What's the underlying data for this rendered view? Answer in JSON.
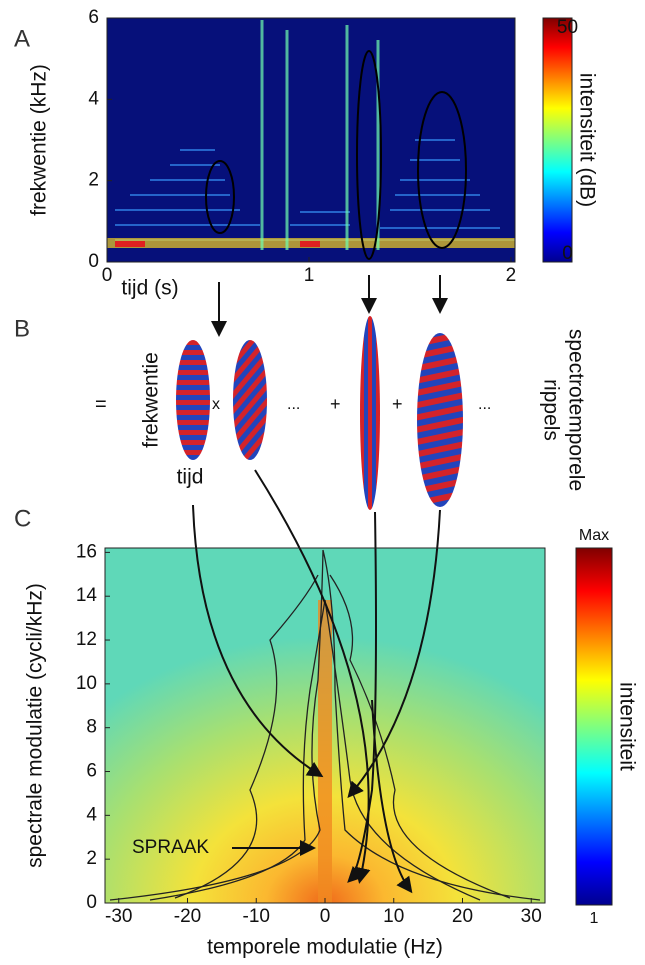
{
  "chart_data": [
    {
      "type": "heatmap",
      "panel_label": "A",
      "xlabel": "tijd (s)",
      "ylabel": "frekwentie (kHz)",
      "xlim": [
        0,
        2.02
      ],
      "xticks": [
        0,
        1,
        2
      ],
      "ylim": [
        0,
        6
      ],
      "yticks": [
        0,
        2,
        4,
        6
      ],
      "colorbar_label": "intensiteit (dB)",
      "clim": [
        0,
        50
      ],
      "cticks": [
        0,
        50
      ]
    },
    {
      "type": "heatmap",
      "panel_label": "C",
      "xlabel": "temporele modulatie (Hz)",
      "ylabel": "spectrale modulatie (cycli/kHz)",
      "xlim": [
        -32,
        32
      ],
      "xticks": [
        -30,
        -20,
        -10,
        0,
        10,
        20,
        30
      ],
      "ylim": [
        0,
        16.2
      ],
      "yticks": [
        0,
        2,
        4,
        6,
        8,
        10,
        12,
        14,
        16
      ],
      "colorbar_label": "intensiteit",
      "colorbar_top": "Max",
      "colorbar_bottom": "1",
      "annotation": "SPRAAK"
    }
  ],
  "panel_b": {
    "label": "B",
    "equals": "=",
    "times": "x",
    "dots1": "...",
    "plus1": "+",
    "plus2": "+",
    "dots2": "...",
    "axis_y": "frekwentie",
    "axis_x": "tijd",
    "caption_1": "spectrotemporele",
    "caption_2": "rippels"
  }
}
